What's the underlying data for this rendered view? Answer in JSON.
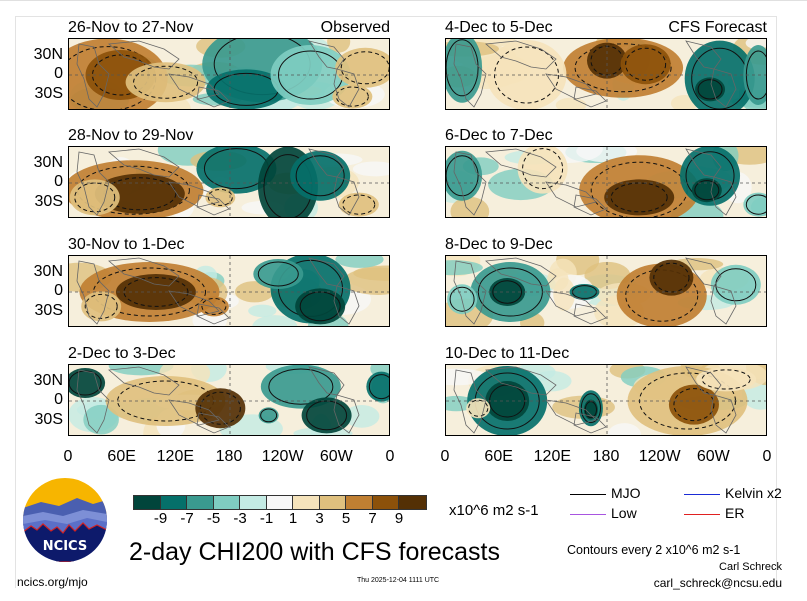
{
  "chart_data": {
    "type": "heatmap",
    "title": "2-day CHI200 with CFS forecasts",
    "variable": "CHI200 (200-hPa velocity potential) anomaly",
    "units": "x10^6 m2 s-1",
    "contour_interval_note": "Contours every 2 x10^6 m2 s-1",
    "colorbar": {
      "ticks": [
        "-9",
        "-7",
        "-5",
        "-3",
        "-1",
        "1",
        "3",
        "5",
        "7",
        "9"
      ],
      "levels": [
        -9,
        -7,
        -5,
        -3,
        -1,
        1,
        3,
        5,
        7,
        9
      ],
      "colors": [
        "#01453b",
        "#05706a",
        "#3a9a8f",
        "#7fcdc1",
        "#c4ebe4",
        "#f7f7f7",
        "#f5e3bb",
        "#dfc07e",
        "#c07f32",
        "#8c510a",
        "#543005"
      ]
    },
    "lat_ticks": [
      "30N",
      "0",
      "30S"
    ],
    "lon_ticks": [
      "0",
      "60E",
      "120E",
      "180",
      "120W",
      "60W",
      "0"
    ],
    "legend": [
      {
        "label": "MJO",
        "color": "#000000"
      },
      {
        "label": "Kelvin x2",
        "color": "#1a2bd6"
      },
      {
        "label": "Low",
        "color": "#a855e0"
      },
      {
        "label": "ER",
        "color": "#e02020"
      }
    ],
    "panels": [
      {
        "id": "p1",
        "dates": "26-Nov to 27-Nov",
        "label": "Observed",
        "column": "left",
        "row": 1,
        "pattern": "suppressed (brown) over Africa/Indian Ocean; enhanced (teal) over central-east Pacific"
      },
      {
        "id": "p2",
        "dates": "28-Nov to 29-Nov",
        "label": "",
        "column": "left",
        "row": 2,
        "pattern": "suppressed Indian Ocean/Maritime Continent; enhanced east Pacific/Americas"
      },
      {
        "id": "p3",
        "dates": "30-Nov to 1-Dec",
        "label": "",
        "column": "left",
        "row": 3,
        "pattern": "suppressed Indian Ocean; enhanced east Pacific/South America"
      },
      {
        "id": "p4",
        "dates": "2-Dec to 3-Dec",
        "label": "",
        "column": "left",
        "row": 4,
        "pattern": "suppressed Maritime Continent to dateline; enhanced South America"
      },
      {
        "id": "p5",
        "dates": "4-Dec to 5-Dec",
        "label": "CFS Forecast",
        "column": "right",
        "row": 1,
        "pattern": "suppressed central Pacific; enhanced Africa and South America"
      },
      {
        "id": "p6",
        "dates": "6-Dec to 7-Dec",
        "label": "",
        "column": "right",
        "row": 2,
        "pattern": "suppressed central-east Pacific; enhanced Americas"
      },
      {
        "id": "p7",
        "dates": "8-Dec to 9-Dec",
        "label": "",
        "column": "right",
        "row": 3,
        "pattern": "enhanced Indian Ocean; suppressed east Pacific"
      },
      {
        "id": "p8",
        "dates": "10-Dec to 11-Dec",
        "label": "",
        "column": "right",
        "row": 4,
        "pattern": "strongly enhanced western Indian Ocean; suppressed east Pacific/South America"
      }
    ]
  },
  "branding": {
    "logo_text": "NCICS",
    "site": "ncics.org/mjo",
    "timestamp": "Thu 2025-12-04 1111 UTC",
    "author": "Carl Schreck",
    "email": "carl_schreck@ncsu.edu"
  }
}
